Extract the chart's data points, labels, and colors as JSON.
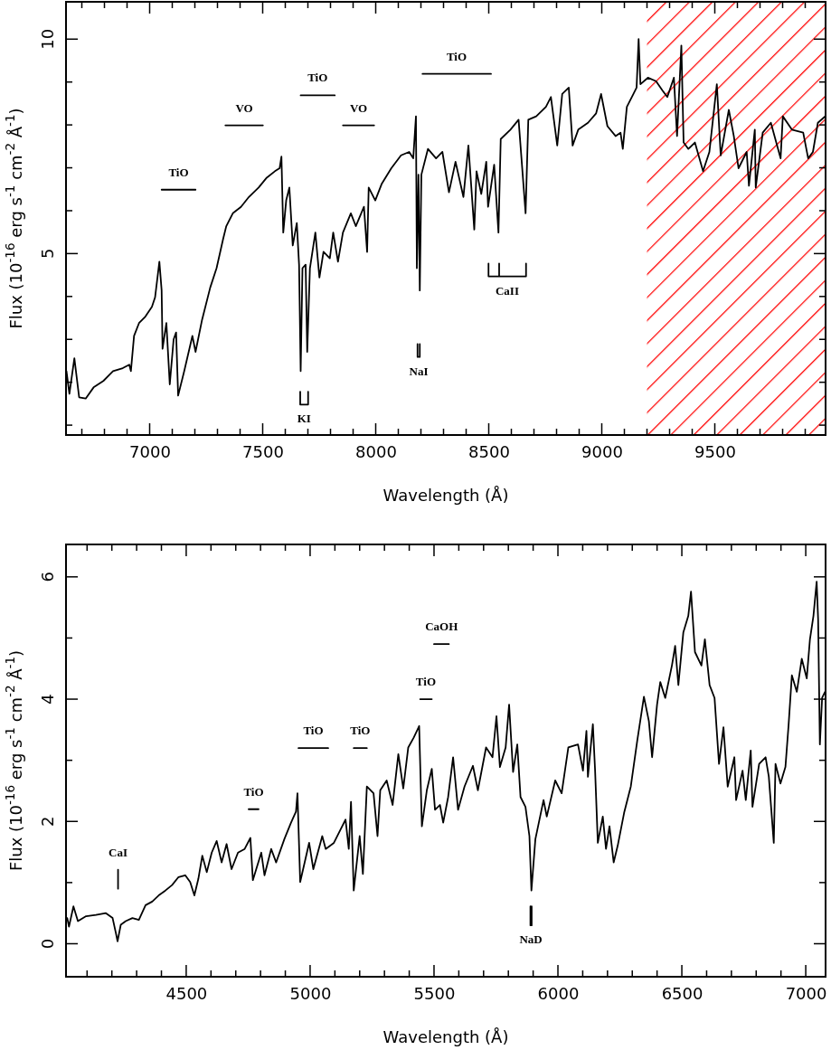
{
  "chart_data": [
    {
      "type": "line",
      "xlabel": "Wavelength (Å)",
      "ylabel": "Flux (10$^{-16}$ erg s$^{-1}$ cm$^{-2}$ Å$^{-1}$)",
      "xlim": [
        6630,
        9990
      ],
      "ylim": [
        0.77,
        10.87
      ],
      "xticks": [
        {
          "value": 6700,
          "label": null
        },
        {
          "value": 6800,
          "label": null
        },
        {
          "value": 6900,
          "label": null
        },
        7000,
        {
          "value": 7100,
          "label": null
        },
        {
          "value": 7200,
          "label": null
        },
        {
          "value": 7300,
          "label": null
        },
        {
          "value": 7400,
          "label": null
        },
        7500,
        {
          "value": 7600,
          "label": null
        },
        {
          "value": 7700,
          "label": null
        },
        {
          "value": 7800,
          "label": null
        },
        {
          "value": 7900,
          "label": null
        },
        8000,
        {
          "value": 8100,
          "label": null
        },
        {
          "value": 8200,
          "label": null
        },
        {
          "value": 8300,
          "label": null
        },
        {
          "value": 8400,
          "label": null
        },
        8500,
        {
          "value": 8600,
          "label": null
        },
        {
          "value": 8700,
          "label": null
        },
        {
          "value": 8800,
          "label": null
        },
        {
          "value": 8900,
          "label": null
        },
        9000,
        {
          "value": 9100,
          "label": null
        },
        {
          "value": 9200,
          "label": null
        },
        {
          "value": 9300,
          "label": null
        },
        {
          "value": 9400,
          "label": null
        },
        9500,
        {
          "value": 9600,
          "label": null
        },
        {
          "value": 9700,
          "label": null
        },
        {
          "value": 9800,
          "label": null
        },
        {
          "value": 9900,
          "label": null
        }
      ],
      "yticks": [
        {
          "value": 1,
          "label": null
        },
        {
          "value": 2,
          "label": null
        },
        {
          "value": 3,
          "label": null
        },
        {
          "value": 4,
          "label": null
        },
        5,
        {
          "value": 6,
          "label": null
        },
        {
          "value": 7,
          "label": null
        },
        {
          "value": 8,
          "label": null
        },
        {
          "value": 9,
          "label": null
        },
        10
      ],
      "bands": [
        {
          "axis": "x",
          "from": 9200,
          "to": 9990,
          "color": "#ff0000"
        }
      ],
      "series": [
        {
          "type": "line",
          "color": "#000000",
          "x": [
            6632,
            6645,
            6667,
            6688,
            6717,
            6752,
            6795,
            6838,
            6881,
            6910,
            6917,
            6931,
            6953,
            6981,
            7010,
            7024,
            7043,
            7053,
            7057,
            7074,
            7089,
            7106,
            7117,
            7126,
            7153,
            7189,
            7203,
            7232,
            7268,
            7296,
            7325,
            7339,
            7368,
            7404,
            7439,
            7482,
            7518,
            7554,
            7575,
            7583,
            7591,
            7604,
            7618,
            7633,
            7651,
            7661,
            7668,
            7676,
            7690,
            7697,
            7709,
            7733,
            7751,
            7769,
            7797,
            7812,
            7833,
            7855,
            7890,
            7912,
            7948,
            7962,
            7969,
            7998,
            8026,
            8069,
            8112,
            8148,
            8166,
            8178,
            8182,
            8189,
            8195,
            8202,
            8231,
            8267,
            8295,
            8324,
            8353,
            8388,
            8410,
            8436,
            8446,
            8467,
            8489,
            8497,
            8524,
            8543,
            8553,
            8596,
            8632,
            8663,
            8675,
            8710,
            8753,
            8775,
            8803,
            8825,
            8854,
            8871,
            8896,
            8939,
            8975,
            8997,
            9025,
            9061,
            9083,
            9093,
            9111,
            9140,
            9154,
            9163,
            9171,
            9204,
            9240,
            9269,
            9290,
            9319,
            9333,
            9352,
            9362,
            9383,
            9412,
            9448,
            9476,
            9509,
            9526,
            9562,
            9584,
            9605,
            9641,
            9651,
            9677,
            9681,
            9712,
            9748,
            9791,
            9801,
            9841,
            9891,
            9913,
            9934,
            9956,
            9988
          ],
          "values": [
            2.26,
            1.73,
            2.56,
            1.65,
            1.62,
            1.88,
            2.03,
            2.26,
            2.33,
            2.41,
            2.26,
            3.08,
            3.38,
            3.53,
            3.76,
            3.98,
            4.81,
            4.14,
            2.78,
            3.38,
            1.95,
            3.0,
            3.16,
            1.69,
            2.26,
            3.08,
            2.71,
            3.46,
            4.21,
            4.66,
            5.34,
            5.64,
            5.94,
            6.09,
            6.32,
            6.54,
            6.77,
            6.92,
            6.99,
            7.26,
            5.49,
            6.24,
            6.54,
            5.19,
            5.71,
            4.74,
            2.26,
            4.66,
            4.74,
            2.71,
            4.66,
            5.49,
            4.44,
            5.04,
            4.89,
            5.49,
            4.81,
            5.49,
            5.94,
            5.64,
            6.09,
            5.04,
            6.54,
            6.24,
            6.62,
            6.99,
            7.29,
            7.37,
            7.22,
            8.2,
            4.66,
            6.84,
            4.14,
            6.84,
            7.44,
            7.22,
            7.37,
            6.43,
            7.14,
            6.32,
            7.52,
            5.56,
            6.92,
            6.39,
            7.14,
            6.09,
            7.07,
            5.49,
            7.67,
            7.89,
            8.12,
            5.94,
            8.12,
            8.2,
            8.42,
            8.65,
            7.52,
            8.72,
            8.87,
            7.52,
            7.89,
            8.05,
            8.27,
            8.72,
            7.97,
            7.74,
            7.82,
            7.44,
            8.42,
            8.72,
            8.87,
            10.0,
            8.95,
            9.1,
            9.02,
            8.8,
            8.65,
            9.1,
            7.74,
            9.85,
            7.59,
            7.44,
            7.59,
            6.92,
            7.37,
            8.95,
            7.29,
            8.35,
            7.74,
            6.99,
            7.37,
            6.58,
            7.89,
            6.54,
            7.82,
            8.05,
            7.22,
            8.2,
            7.89,
            7.82,
            7.22,
            7.37,
            8.05,
            8.2
          ]
        },
        {
          "type": "line",
          "color": "#000000",
          "x": [
            7053,
            7203
          ],
          "values": [
            6.49,
            6.49
          ]
        },
        {
          "type": "line",
          "color": "#000000",
          "x": [
            7335,
            7501
          ],
          "values": [
            7.99,
            7.99
          ]
        },
        {
          "type": "line",
          "color": "#000000",
          "x": [
            7668,
            7819
          ],
          "values": [
            8.69,
            8.69
          ]
        },
        {
          "type": "line",
          "color": "#000000",
          "x": [
            7855,
            7993
          ],
          "values": [
            7.99,
            7.99
          ]
        },
        {
          "type": "line",
          "color": "#000000",
          "x": [
            8207,
            8510
          ],
          "values": [
            9.19,
            9.19
          ]
        },
        {
          "type": "line",
          "color": "#000000",
          "x": [
            7666,
            7666,
            7701,
            7701
          ],
          "values": [
            1.78,
            1.48,
            1.48,
            1.78
          ]
        },
        {
          "type": "line",
          "color": "#000000",
          "x": [
            8185,
            8185,
            8195,
            8195
          ],
          "values": [
            2.89,
            2.59,
            2.59,
            2.89
          ]
        },
        {
          "type": "line",
          "color": "#000000",
          "x": [
            8499,
            8499,
            8546,
            8546,
            8546,
            8665,
            8665
          ],
          "values": [
            4.77,
            4.47,
            4.47,
            4.77,
            4.47,
            4.47,
            4.77
          ]
        }
      ],
      "annotations": [
        {
          "text": "TiO",
          "x": 7128,
          "y": 6.49
        },
        {
          "text": "VO",
          "x": 7418,
          "y": 7.99
        },
        {
          "text": "TiO",
          "x": 7743,
          "y": 8.69
        },
        {
          "text": "VO",
          "x": 7924,
          "y": 7.99
        },
        {
          "text": "TiO",
          "x": 8358,
          "y": 9.19
        },
        {
          "text": "KI",
          "x": 7683,
          "y": 1.48
        },
        {
          "text": "NaI",
          "x": 8190,
          "y": 2.59
        },
        {
          "text": "CaII",
          "x": 8582,
          "y": 4.47
        }
      ]
    },
    {
      "type": "line",
      "xlabel": "Wavelength (Å)",
      "ylabel": "Flux (10$^{-16}$ erg s$^{-1}$ cm$^{-2}$ Å$^{-1}$)",
      "xlim": [
        4015,
        7080
      ],
      "ylim": [
        -0.54,
        6.53
      ],
      "xticks": [
        {
          "value": 4100,
          "label": null
        },
        {
          "value": 4200,
          "label": null
        },
        {
          "value": 4300,
          "label": null
        },
        {
          "value": 4400,
          "label": null
        },
        4500,
        {
          "value": 4600,
          "label": null
        },
        {
          "value": 4700,
          "label": null
        },
        {
          "value": 4800,
          "label": null
        },
        {
          "value": 4900,
          "label": null
        },
        5000,
        {
          "value": 5100,
          "label": null
        },
        {
          "value": 5200,
          "label": null
        },
        {
          "value": 5300,
          "label": null
        },
        {
          "value": 5400,
          "label": null
        },
        5500,
        {
          "value": 5600,
          "label": null
        },
        {
          "value": 5700,
          "label": null
        },
        {
          "value": 5800,
          "label": null
        },
        {
          "value": 5900,
          "label": null
        },
        6000,
        {
          "value": 6100,
          "label": null
        },
        {
          "value": 6200,
          "label": null
        },
        {
          "value": 6300,
          "label": null
        },
        {
          "value": 6400,
          "label": null
        },
        6500,
        {
          "value": 6600,
          "label": null
        },
        {
          "value": 6700,
          "label": null
        },
        {
          "value": 6800,
          "label": null
        },
        {
          "value": 6900,
          "label": null
        },
        7000
      ],
      "yticks": [
        0,
        {
          "value": 1,
          "label": null
        },
        2,
        {
          "value": 3,
          "label": null
        },
        4,
        {
          "value": 5,
          "label": null
        },
        6
      ],
      "series": [
        {
          "type": "line",
          "color": "#000000",
          "x": [
            4020,
            4027,
            4045,
            4063,
            4096,
            4136,
            4176,
            4203,
            4216,
            4223,
            4236,
            4256,
            4283,
            4309,
            4336,
            4363,
            4389,
            4416,
            4443,
            4469,
            4496,
            4516,
            4533,
            4549,
            4565,
            4583,
            4603,
            4623,
            4643,
            4663,
            4683,
            4709,
            4736,
            4759,
            4769,
            4803,
            4816,
            4843,
            4863,
            4896,
            4923,
            4943,
            4949,
            4960,
            4996,
            5013,
            5049,
            5063,
            5096,
            5123,
            5143,
            5156,
            5165,
            5176,
            5200,
            5213,
            5229,
            5256,
            5272,
            5283,
            5309,
            5333,
            5356,
            5376,
            5396,
            5418,
            5440,
            5451,
            5471,
            5491,
            5504,
            5524,
            5537,
            5557,
            5577,
            5597,
            5623,
            5657,
            5677,
            5710,
            5736,
            5752,
            5766,
            5789,
            5803,
            5819,
            5836,
            5849,
            5869,
            5885,
            5893,
            5909,
            5942,
            5955,
            5989,
            6015,
            6042,
            6081,
            6101,
            6115,
            6121,
            6141,
            6150,
            6161,
            6181,
            6194,
            6208,
            6225,
            6241,
            6267,
            6294,
            6320,
            6347,
            6367,
            6380,
            6400,
            6413,
            6433,
            6460,
            6473,
            6486,
            6506,
            6526,
            6537,
            6553,
            6579,
            6593,
            6612,
            6632,
            6650,
            6668,
            6685,
            6712,
            6719,
            6745,
            6758,
            6778,
            6785,
            6812,
            6838,
            6851,
            6871,
            6878,
            6898,
            6918,
            6931,
            6944,
            6964,
            6984,
            7004,
            7017,
            7031,
            7044,
            7050,
            7057,
            7066,
            7078
          ],
          "values": [
            0.42,
            0.28,
            0.61,
            0.37,
            0.45,
            0.47,
            0.5,
            0.42,
            0.18,
            0.04,
            0.31,
            0.37,
            0.42,
            0.39,
            0.63,
            0.69,
            0.79,
            0.87,
            0.96,
            1.09,
            1.12,
            1.01,
            0.79,
            1.06,
            1.44,
            1.17,
            1.49,
            1.68,
            1.33,
            1.63,
            1.22,
            1.49,
            1.55,
            1.73,
            1.04,
            1.49,
            1.12,
            1.55,
            1.33,
            1.71,
            1.98,
            2.16,
            2.46,
            1.01,
            1.65,
            1.22,
            1.76,
            1.55,
            1.65,
            1.87,
            2.03,
            1.55,
            2.32,
            0.87,
            1.76,
            1.14,
            2.57,
            2.46,
            1.76,
            2.51,
            2.67,
            2.27,
            3.1,
            2.54,
            3.21,
            3.37,
            3.56,
            1.92,
            2.51,
            2.86,
            2.19,
            2.27,
            1.98,
            2.4,
            3.05,
            2.19,
            2.57,
            2.91,
            2.51,
            3.21,
            3.05,
            3.72,
            2.89,
            3.21,
            3.91,
            2.81,
            3.26,
            2.4,
            2.24,
            1.76,
            0.87,
            1.71,
            2.35,
            2.08,
            2.67,
            2.46,
            3.21,
            3.26,
            2.83,
            3.48,
            2.73,
            3.59,
            2.83,
            1.65,
            2.08,
            1.55,
            1.92,
            1.33,
            1.6,
            2.14,
            2.57,
            3.32,
            4.04,
            3.64,
            3.05,
            3.91,
            4.28,
            4.02,
            4.55,
            4.87,
            4.23,
            5.09,
            5.36,
            5.76,
            4.77,
            4.55,
            4.98,
            4.23,
            4.02,
            2.94,
            3.54,
            2.57,
            3.05,
            2.35,
            2.83,
            2.35,
            3.16,
            2.24,
            2.94,
            3.05,
            2.73,
            1.65,
            2.94,
            2.62,
            2.89,
            3.59,
            4.39,
            4.12,
            4.66,
            4.34,
            4.98,
            5.36,
            5.92,
            5.3,
            3.26,
            4.02,
            4.12
          ]
        },
        {
          "type": "line",
          "color": "#000000",
          "x": [
            4225,
            4225
          ],
          "values": [
            1.21,
            0.9
          ]
        },
        {
          "type": "line",
          "color": "#000000",
          "x": [
            4752,
            4792
          ],
          "values": [
            2.2,
            2.2
          ]
        },
        {
          "type": "line",
          "color": "#000000",
          "x": [
            4953,
            5073
          ],
          "values": [
            3.2,
            3.2
          ]
        },
        {
          "type": "line",
          "color": "#000000",
          "x": [
            5176,
            5229
          ],
          "values": [
            3.2,
            3.2
          ]
        },
        {
          "type": "line",
          "color": "#000000",
          "x": [
            5444,
            5491
          ],
          "values": [
            4.0,
            4.0
          ]
        },
        {
          "type": "line",
          "color": "#000000",
          "x": [
            5500,
            5560
          ],
          "values": [
            4.9,
            4.9
          ]
        },
        {
          "type": "line",
          "color": "#000000",
          "x": [
            5889,
            5889,
            5894,
            5894
          ],
          "values": [
            0.61,
            0.3,
            0.3,
            0.61
          ]
        }
      ],
      "annotations": [
        {
          "text": "CaI",
          "x": 4225,
          "y": 1.21
        },
        {
          "text": "TiO",
          "x": 4772,
          "y": 2.2
        },
        {
          "text": "TiO",
          "x": 5013,
          "y": 3.2
        },
        {
          "text": "TiO",
          "x": 5202,
          "y": 3.2
        },
        {
          "text": "TiO",
          "x": 5467,
          "y": 4.0
        },
        {
          "text": "CaOH",
          "x": 5530,
          "y": 4.9
        },
        {
          "text": "NaD",
          "x": 5891,
          "y": 0.3
        }
      ]
    }
  ]
}
